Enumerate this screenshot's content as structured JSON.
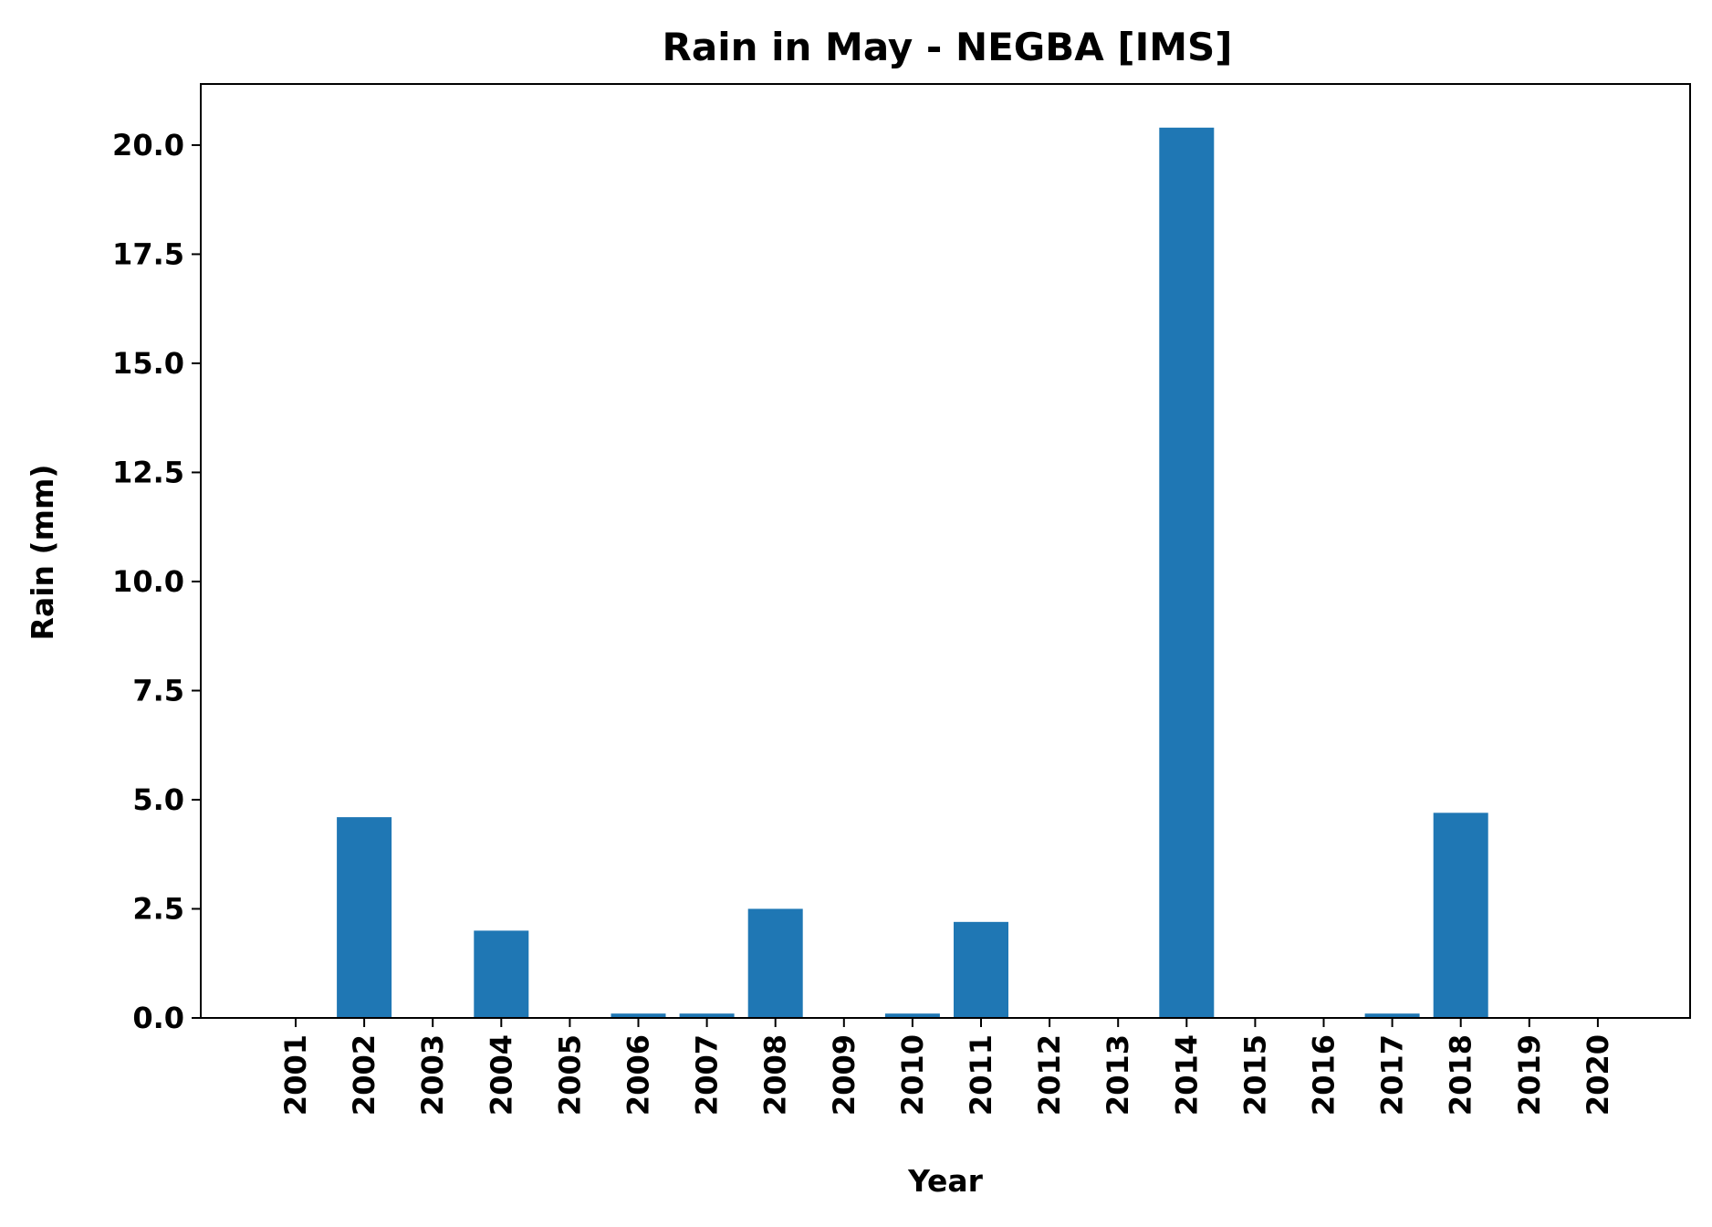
{
  "chart_data": {
    "type": "bar",
    "title": "Rain in May - NEGBA [IMS]",
    "xlabel": "Year",
    "ylabel": "Rain (mm)",
    "categories": [
      "2001",
      "2002",
      "2003",
      "2004",
      "2005",
      "2006",
      "2007",
      "2008",
      "2009",
      "2010",
      "2011",
      "2012",
      "2013",
      "2014",
      "2015",
      "2016",
      "2017",
      "2018",
      "2019",
      "2020"
    ],
    "values": [
      0,
      4.6,
      0,
      2.0,
      0,
      0.1,
      0.1,
      2.5,
      0,
      0.1,
      2.2,
      0,
      0,
      20.4,
      0,
      0,
      0.1,
      4.7,
      0,
      0
    ],
    "ylim": [
      0,
      21.4
    ],
    "yticks": [
      0.0,
      2.5,
      5.0,
      7.5,
      10.0,
      12.5,
      15.0,
      17.5,
      20.0
    ],
    "grid": false,
    "bar_color": "#1f77b4"
  }
}
